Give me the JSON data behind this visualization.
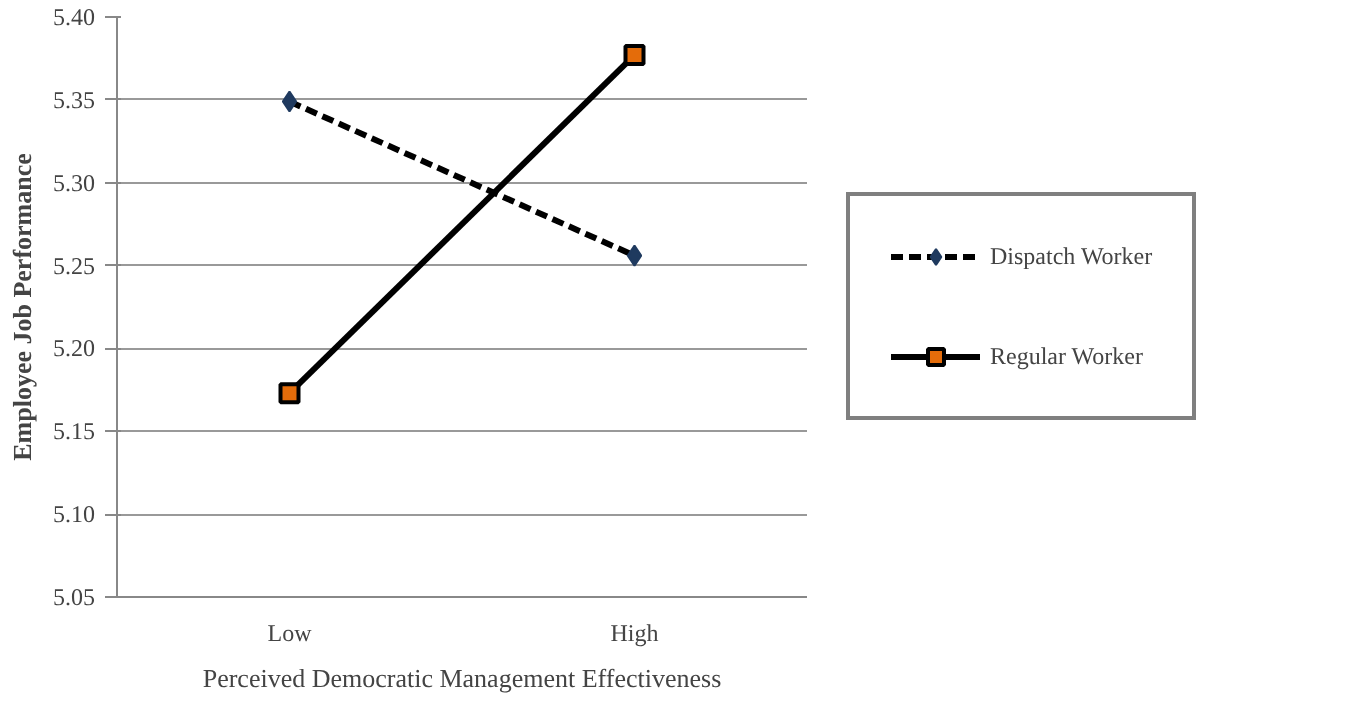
{
  "chart_data": {
    "type": "line",
    "xlabel": "Perceived Democratic Management Effectiveness",
    "ylabel": "Employee Job Performance",
    "categories": [
      "Low",
      "High"
    ],
    "series": [
      {
        "name": "Dispatch Worker",
        "color": "#000000",
        "values": [
          5.349,
          5.256
        ],
        "marker": "diamond",
        "line_style": "dashed"
      },
      {
        "name": "Regular Worker",
        "color": "#000000",
        "values": [
          5.173,
          5.377
        ],
        "marker": "square",
        "line_style": "solid"
      }
    ],
    "ylim": [
      5.05,
      5.4
    ],
    "yticks": [
      {
        "value": 5.05,
        "label": "5.05"
      },
      {
        "value": 5.1,
        "label": "5.10"
      },
      {
        "value": 5.15,
        "label": "5.15"
      },
      {
        "value": 5.2,
        "label": "5.20"
      },
      {
        "value": 5.25,
        "label": "5.25"
      },
      {
        "value": 5.3,
        "label": "5.30"
      },
      {
        "value": 5.35,
        "label": "5.35"
      },
      {
        "value": 5.4,
        "label": "5.40"
      }
    ],
    "grid": "y",
    "legend": "right"
  }
}
